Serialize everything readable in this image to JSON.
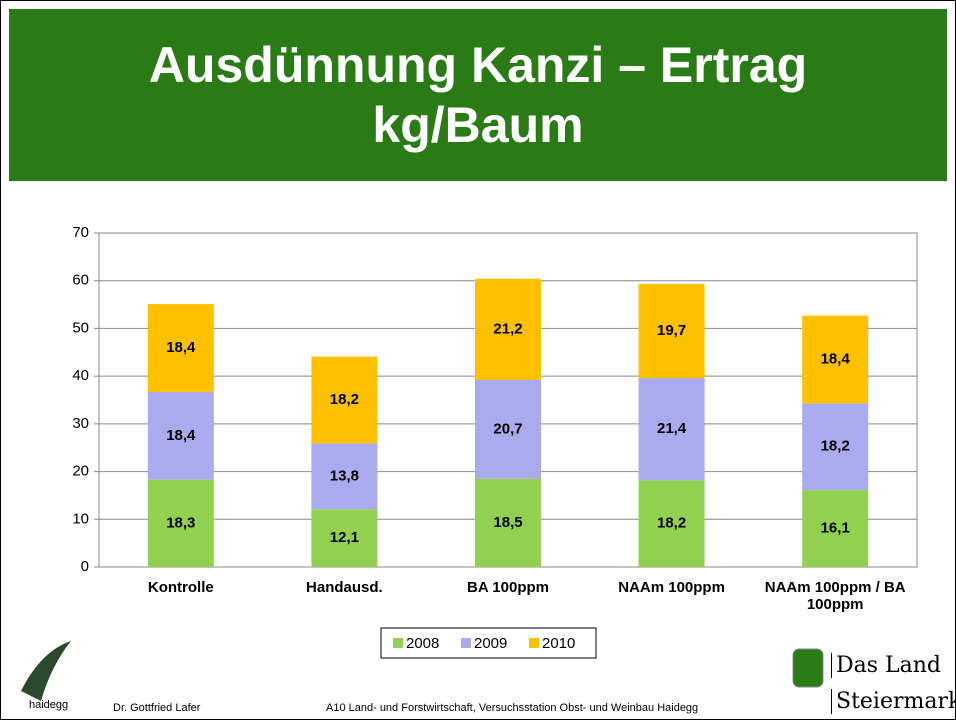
{
  "chart_data": {
    "type": "stacked_bar",
    "title": "Ausdünnung Kanzi – Ertrag kg/Baum",
    "categories": [
      "Kontrolle",
      "Handausd.",
      "BA 100ppm",
      "NAAm 100ppm",
      "NAAm 100ppm / BA 100ppm"
    ],
    "series": [
      {
        "name": "2008",
        "color": "#92d050",
        "values": [
          18.3,
          12.1,
          18.5,
          18.2,
          16.1
        ],
        "value_labels": [
          "18,3",
          "12,1",
          "18,5",
          "18,2",
          "16,1"
        ]
      },
      {
        "name": "2009",
        "color": "#aaaaee",
        "values": [
          18.4,
          13.8,
          20.7,
          21.4,
          18.2
        ],
        "value_labels": [
          "18,4",
          "13,8",
          "20,7",
          "21,4",
          "18,2"
        ]
      },
      {
        "name": "2010",
        "color": "#ffc000",
        "values": [
          18.4,
          18.2,
          21.2,
          19.7,
          18.4
        ],
        "value_labels": [
          "18,4",
          "18,2",
          "21,2",
          "19,7",
          "18,4"
        ]
      }
    ],
    "ylim": [
      0,
      70
    ],
    "yticks": [
      0,
      10,
      20,
      30,
      40,
      50,
      60,
      70
    ],
    "grid": true,
    "legend": "bottom"
  },
  "footer": {
    "logo": "haidegg",
    "author": "Dr. Gottfried Lafer",
    "institution": "A10 Land- und Forstwirtschaft, Versuchsstation Obst- und Weinbau Haidegg",
    "brand_line1": "Das Land",
    "brand_line2": "Steiermark"
  }
}
